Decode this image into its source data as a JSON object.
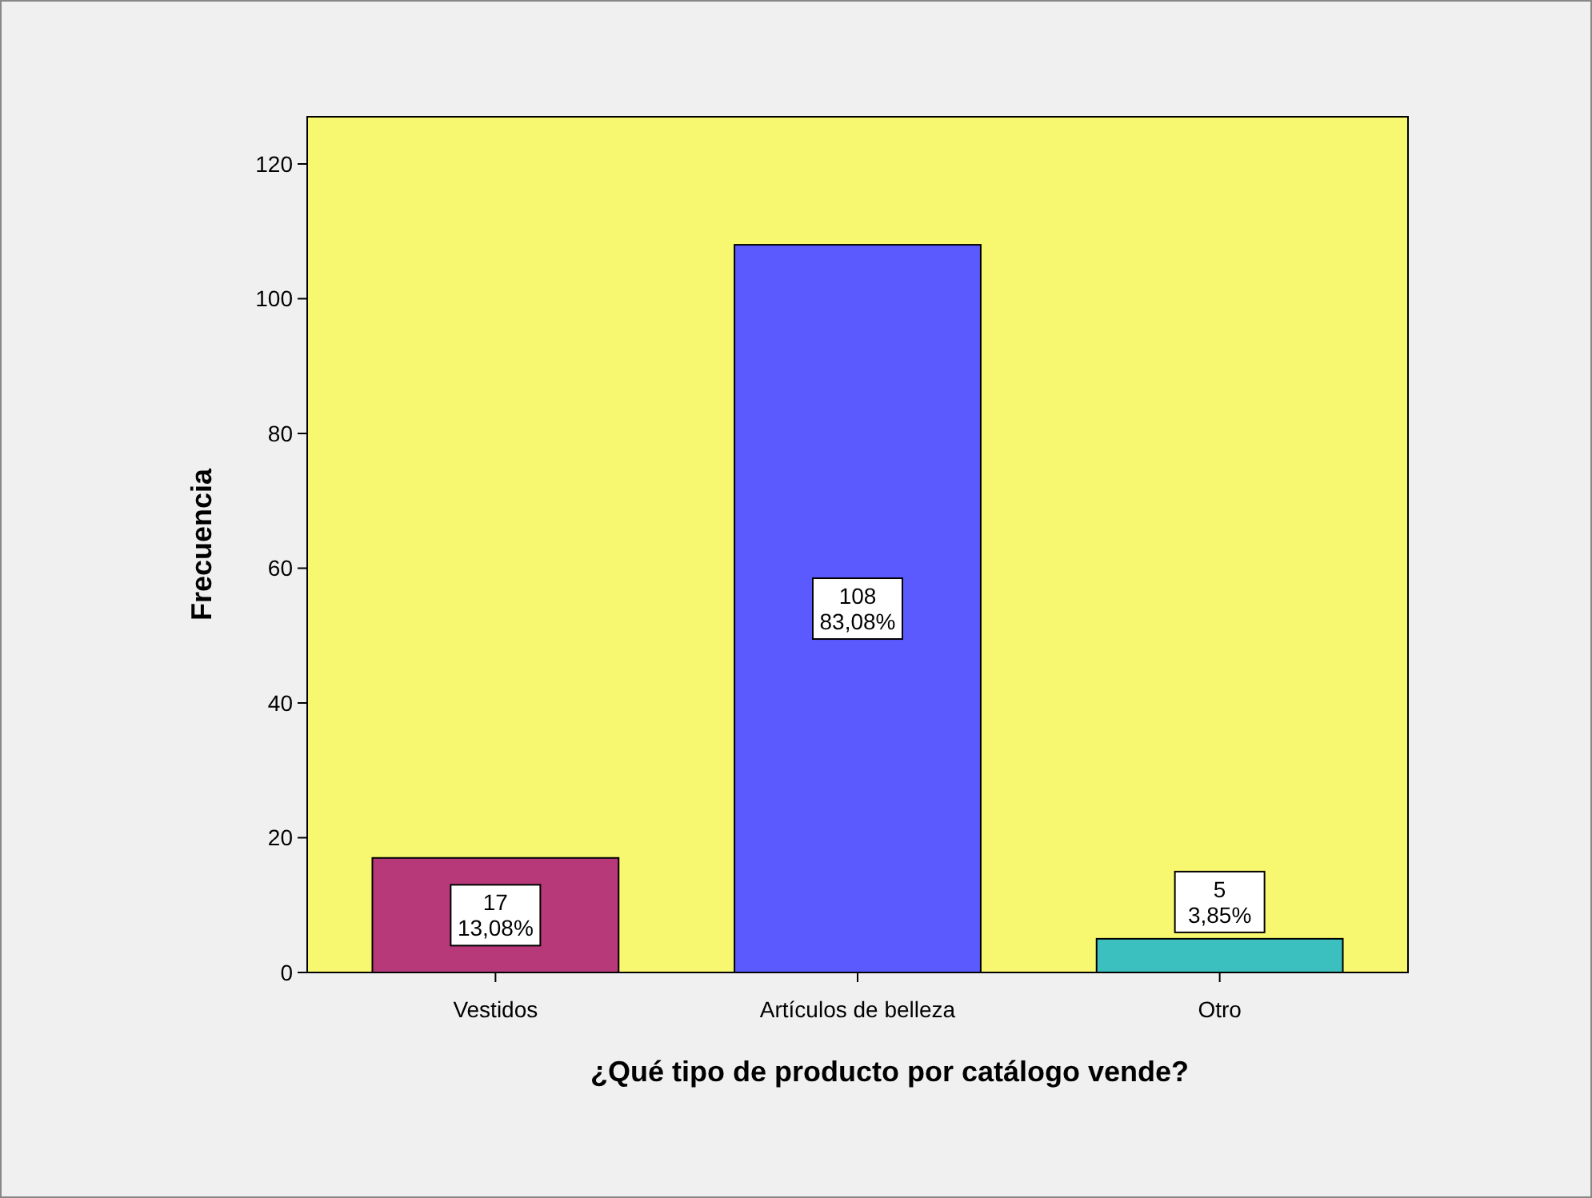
{
  "chart_data": {
    "type": "bar",
    "xlabel": "¿Qué tipo de producto por catálogo vende?",
    "ylabel": "Frecuencia",
    "categories": [
      "Vestidos",
      "Artículos de belleza",
      "Otro"
    ],
    "values": [
      17,
      108,
      5
    ],
    "colors": [
      "#b8397a",
      "#5a5aff",
      "#3cbfbf"
    ],
    "value_labels": [
      "17\n13,08%",
      "108\n83,08%",
      "5\n3,85%"
    ],
    "ylim": [
      0,
      127
    ],
    "yticks": [
      0,
      20,
      40,
      60,
      80,
      100,
      120
    ],
    "grid": false
  }
}
